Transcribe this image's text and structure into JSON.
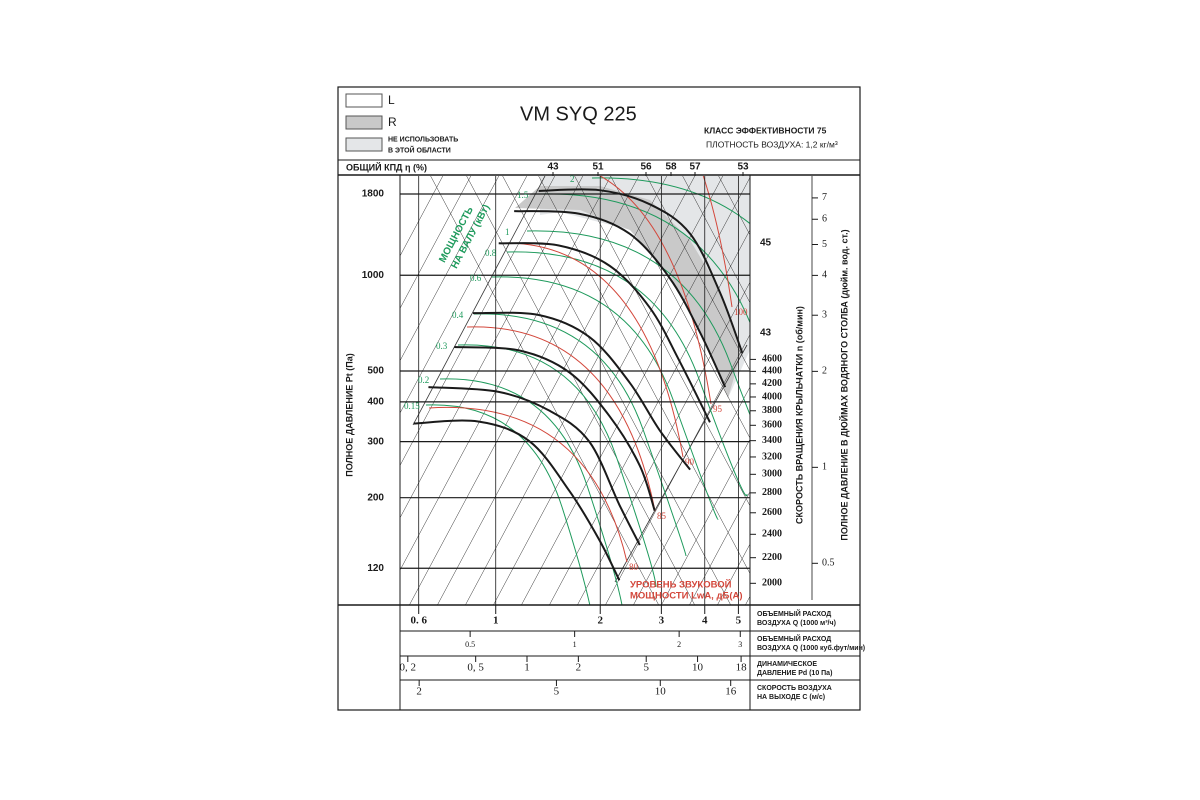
{
  "legend": [
    {
      "label": [
        "L"
      ],
      "color": "#ffffff"
    },
    {
      "label": [
        "R"
      ],
      "color": "#c9c9c9"
    },
    {
      "label": [
        "НЕ ИСПОЛЬЗОВАТЬ",
        "В ЭТОЙ ОБЛАСТИ"
      ],
      "color": "#e4e6e8"
    }
  ],
  "chart_data": {
    "type": "line",
    "title": "VM SYQ 225",
    "efficiency_class": "КЛАСС ЭФФЕКТИВНОСТИ 75",
    "air_density": "ПЛОТНОСТЬ ВОЗДУХА: 1,2 кг/м³",
    "ylabel": "ПОЛНОЕ ДАВЛЕНИЕ Pt (Па)",
    "xlabel": [
      "ОБЪЕМНЫЙ РАСХОД",
      "ВОЗДУХА Q (1000 м³/ч)"
    ],
    "log_scale": true,
    "grid": true,
    "xlim": [
      0.53,
      5.4
    ],
    "ylim": [
      92,
      2050
    ],
    "xticks": [
      {
        "value": 0.6,
        "label": "0. 6"
      },
      1,
      2,
      3,
      4,
      5
    ],
    "yticks": [
      120,
      200,
      300,
      400,
      500,
      1000,
      1800
    ],
    "series": [
      {
        "color": "#1a1a1a",
        "x": [
          1.33,
          1.99,
          2.78,
          3.63,
          4.43,
          5.13
        ],
        "values": [
          1840,
          1850,
          1670,
          1350,
          880,
          570
        ]
      },
      {
        "color": "#1a1a1a",
        "x": [
          1.13,
          1.74,
          2.43,
          3.17,
          3.88,
          4.58
        ],
        "values": [
          1590,
          1560,
          1350,
          980,
          660,
          445
        ]
      },
      {
        "color": "#1a1a1a",
        "x": [
          1.02,
          1.52,
          2.13,
          2.78,
          3.39,
          4.14
        ],
        "values": [
          1260,
          1240,
          1070,
          790,
          535,
          345
        ]
      },
      {
        "color": "#1a1a1a",
        "x": [
          0.86,
          1.33,
          1.86,
          2.43,
          2.97,
          3.63
        ],
        "values": [
          760,
          750,
          640,
          460,
          325,
          245
        ]
      },
      {
        "color": "#1a1a1a",
        "x": [
          0.76,
          1.17,
          1.63,
          2.13,
          2.6,
          2.87
        ],
        "values": [
          595,
          580,
          495,
          360,
          252,
          182
        ]
      },
      {
        "color": "#1a1a1a",
        "x": [
          0.64,
          1.02,
          1.43,
          1.86,
          2.27,
          2.6
        ],
        "values": [
          445,
          430,
          375,
          300,
          190,
          142
        ]
      },
      {
        "color": "#1a1a1a",
        "x": [
          0.58,
          0.89,
          1.25,
          1.63,
          1.99,
          2.27
        ],
        "values": [
          342,
          347,
          301,
          210,
          147,
          110
        ]
      }
    ],
    "efficiency": {
      "label": "ОБЩИЙ КПД η (%)",
      "values": [
        43,
        51,
        56,
        58,
        57,
        53
      ],
      "side_values": [
        45,
        43
      ]
    },
    "power": {
      "label": [
        "МОЩНОСТЬ",
        "НА ВАЛУ (кВт)"
      ],
      "color": "#1e9a5c",
      "values": [
        0.15,
        0.2,
        0.3,
        0.4,
        0.6,
        0.8,
        1,
        1.5,
        2
      ]
    },
    "noise": {
      "label": [
        "УРОВЕНЬ ЗВУКОВОЙ",
        "МОЩНОСТИ LwA, дБ(А)"
      ],
      "color": "#d3473b",
      "values": [
        80,
        85,
        90,
        95,
        100
      ]
    },
    "rpm_axis": {
      "label": "СКОРОСТЬ ВРАЩЕНИЯ КРЫЛЬЧАТКИ  n (об/мин)",
      "lim": [
        1845,
        9100
      ],
      "ticks": [
        2000,
        2200,
        2400,
        2600,
        2800,
        3000,
        3200,
        3400,
        3600,
        3800,
        4000,
        4200,
        4400,
        4600
      ]
    },
    "y2label": "ПОЛНОЕ ДАВЛЕНИЕ В ДЮЙМАХ ВОДЯНОГО СТОЛБА (дюйм. вод. ст.)",
    "y2lim": [
      0.37,
      8.2
    ],
    "y2ticks": [
      0.5,
      1,
      2,
      3,
      4,
      5,
      6,
      7
    ],
    "extra_scales": [
      {
        "label": [
          "ОБЪЕМНЫЙ РАСХОД",
          "ВОЗДУХА Q (1000 куб.фут/мин)"
        ],
        "lim": [
          0.314,
          3.2
        ],
        "ticks": [
          0.5,
          1,
          2,
          3
        ]
      },
      {
        "label": [
          "ДИНАМИЧЕСКОЕ",
          "ДАВЛЕНИЕ Pd (10 Па)"
        ],
        "lim": [
          0.18,
          20.3
        ],
        "ticks": [
          {
            "value": 0.2,
            "label": "0, 2"
          },
          {
            "value": 0.5,
            "label": "0, 5"
          },
          1,
          2,
          5,
          10,
          18
        ]
      },
      {
        "label": [
          "СКОРОСТЬ ВОЗДУХА",
          "НА ВЫХОДЕ C (м/с)"
        ],
        "lim": [
          1.76,
          18.2
        ],
        "ticks": [
          2,
          5,
          10,
          16
        ]
      }
    ]
  }
}
